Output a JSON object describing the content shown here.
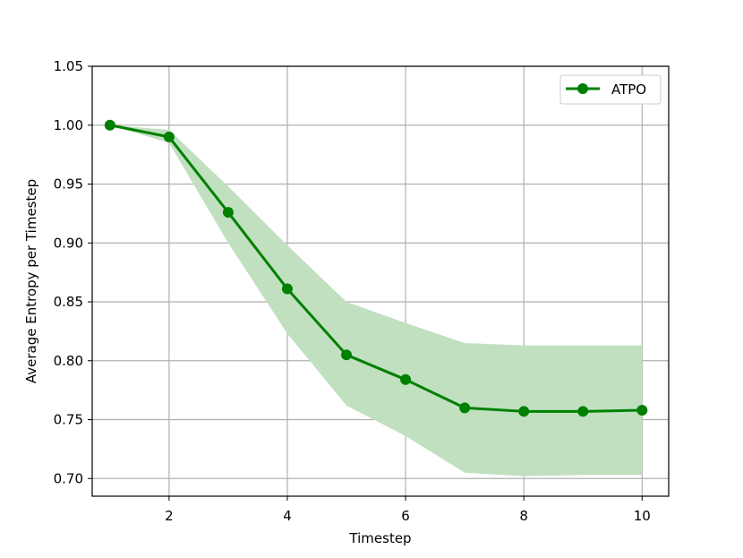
{
  "chart_data": {
    "type": "line",
    "xlabel": "Timestep",
    "ylabel": "Average Entropy per Timestep",
    "xlim": [
      0.7,
      10.45
    ],
    "ylim": [
      0.685,
      1.05
    ],
    "x_ticks": [
      2,
      4,
      6,
      8,
      10
    ],
    "y_ticks": [
      0.7,
      0.75,
      0.8,
      0.85,
      0.9,
      0.95,
      1.0,
      1.05
    ],
    "grid": true,
    "legend_position": "top-right",
    "series": [
      {
        "name": "ATPO",
        "color": "#008000",
        "band_color": "#c0e0c0",
        "x": [
          1,
          2,
          3,
          4,
          5,
          6,
          7,
          8,
          9,
          10
        ],
        "y": [
          1.0,
          0.99,
          0.926,
          0.861,
          0.805,
          0.784,
          0.76,
          0.757,
          0.757,
          0.758
        ],
        "lower": [
          1.0,
          0.985,
          0.9,
          0.823,
          0.762,
          0.736,
          0.705,
          0.702,
          0.703,
          0.703
        ],
        "upper": [
          1.0,
          0.996,
          0.948,
          0.898,
          0.85,
          0.832,
          0.815,
          0.813,
          0.813,
          0.813
        ]
      }
    ]
  }
}
